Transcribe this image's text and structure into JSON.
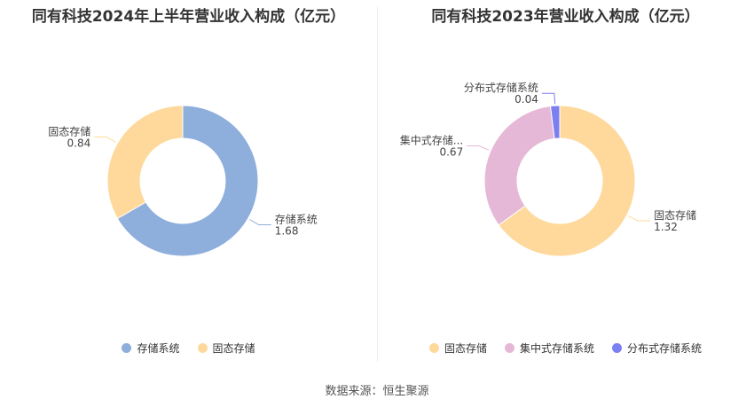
{
  "chart_data": [
    {
      "type": "pie",
      "title": "同有科技2024年上半年营业收入构成（亿元）",
      "categories": [
        "存储系统",
        "固态存储"
      ],
      "values": [
        1.68,
        0.84
      ],
      "colors": [
        "#8eaedb",
        "#fed99b"
      ],
      "label_names": [
        "存储系统",
        "固态存储"
      ],
      "label_values": [
        "1.68",
        "0.84"
      ],
      "legend": [
        "存储系统",
        "固态存储"
      ],
      "legend_position": "bottom"
    },
    {
      "type": "pie",
      "title": "同有科技2023年营业收入构成（亿元）",
      "categories": [
        "固态存储",
        "集中式存储系统",
        "分布式存储系统"
      ],
      "values": [
        1.32,
        0.67,
        0.04
      ],
      "colors": [
        "#fed99b",
        "#e6b8d8",
        "#7b7ff0"
      ],
      "label_names": [
        "固态存储",
        "集中式存储...",
        "分布式存储系统"
      ],
      "label_values": [
        "1.32",
        "0.67",
        "0.04"
      ],
      "legend": [
        "固态存储",
        "集中式存储系统",
        "分布式存储系统"
      ],
      "legend_position": "bottom"
    }
  ],
  "source": "数据来源：恒生聚源"
}
